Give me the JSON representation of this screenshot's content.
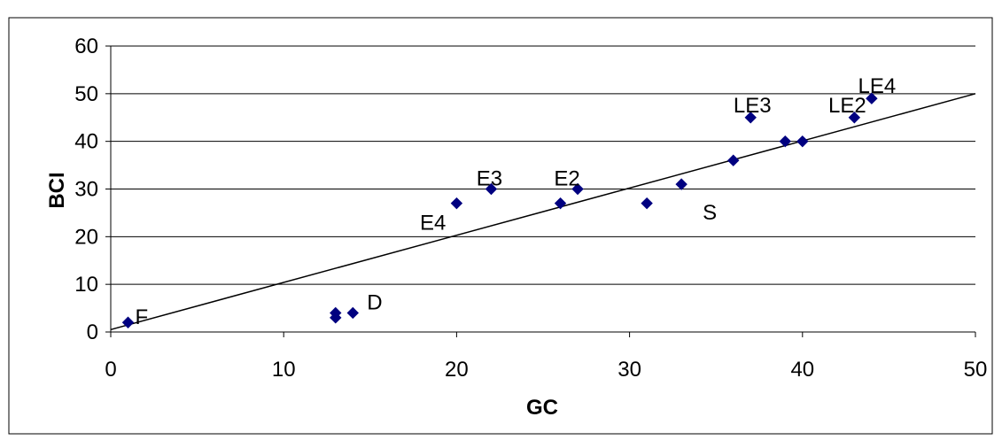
{
  "chart_data": {
    "type": "scatter",
    "xlabel": "GC",
    "ylabel": "BCI",
    "xlim": [
      0,
      50
    ],
    "ylim": [
      0,
      60
    ],
    "x_ticks": [
      "0",
      "10",
      "20",
      "30",
      "40",
      "50"
    ],
    "y_ticks": [
      "0",
      "10",
      "20",
      "30",
      "40",
      "50",
      "60"
    ],
    "grid": "horizontal",
    "legend": "none",
    "marker_color": "#000080",
    "line_color": "#000000",
    "series": [
      {
        "points": [
          {
            "x": 1,
            "y": 2,
            "label": "F"
          },
          {
            "x": 13,
            "y": 4,
            "label": ""
          },
          {
            "x": 13,
            "y": 3,
            "label": ""
          },
          {
            "x": 14,
            "y": 4,
            "label": "D"
          },
          {
            "x": 20,
            "y": 27,
            "label": "E4"
          },
          {
            "x": 22,
            "y": 30,
            "label": "E3"
          },
          {
            "x": 26,
            "y": 27,
            "label": ""
          },
          {
            "x": 27,
            "y": 30,
            "label": "E2"
          },
          {
            "x": 31,
            "y": 27,
            "label": ""
          },
          {
            "x": 33,
            "y": 31,
            "label": "S"
          },
          {
            "x": 36,
            "y": 36,
            "label": ""
          },
          {
            "x": 37,
            "y": 45,
            "label": "LE3"
          },
          {
            "x": 39,
            "y": 40,
            "label": ""
          },
          {
            "x": 40,
            "y": 40,
            "label": ""
          },
          {
            "x": 43,
            "y": 45,
            "label": "LE2"
          },
          {
            "x": 44,
            "y": 49,
            "label": "LE4"
          }
        ]
      }
    ],
    "trendline": {
      "x": [
        0,
        50
      ],
      "y": [
        0.5,
        50
      ]
    }
  }
}
